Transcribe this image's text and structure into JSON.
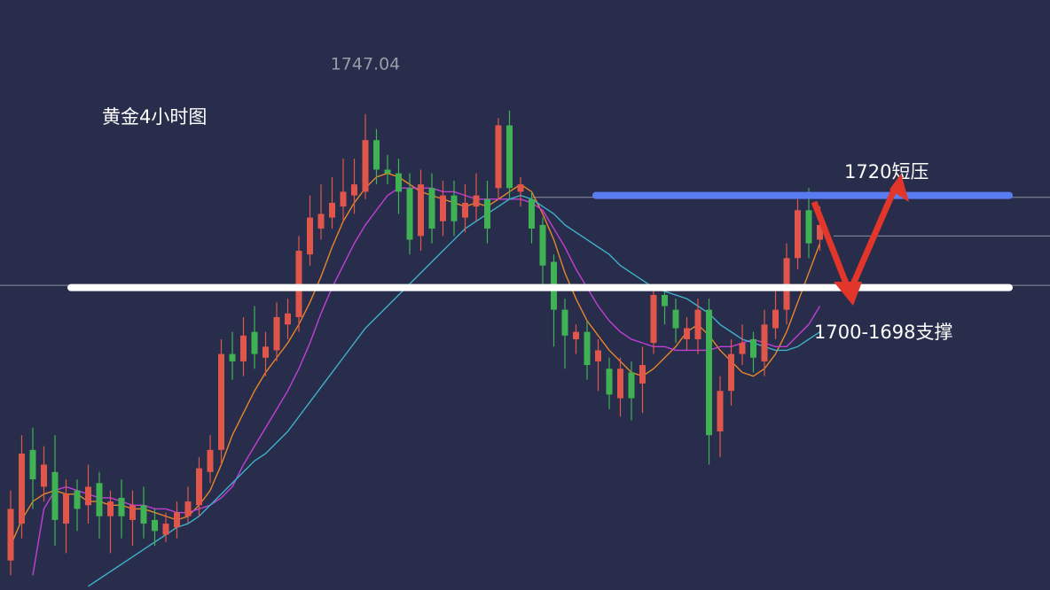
{
  "chart_data": {
    "type": "candlestick",
    "title": "黄金4小时图",
    "resistance_label": "1720短压",
    "support_label": "1700-1698支撑",
    "ylim": [
      1618,
      1778
    ],
    "up_color": "#e0564a",
    "down_color": "#3fb253",
    "open": [
      1626,
      1636,
      1656,
      1646,
      1650,
      1636,
      1645,
      1641,
      1647,
      1638,
      1643,
      1637,
      1641,
      1637,
      1633,
      1635,
      1638,
      1641,
      1650,
      1656,
      1682,
      1680,
      1688,
      1681,
      1683,
      1690,
      1692,
      1709,
      1716,
      1719,
      1722,
      1725,
      1726,
      1740,
      1732,
      1731,
      1727,
      1714,
      1727,
      1718,
      1725,
      1719,
      1722,
      1724,
      1727,
      1744,
      1726,
      1724,
      1717,
      1707,
      1694,
      1686,
      1688,
      1680,
      1678,
      1670,
      1677,
      1674,
      1685,
      1698,
      1694,
      1686,
      1686,
      1694,
      1661,
      1672,
      1682,
      1686,
      1680,
      1689,
      1694,
      1708,
      1721,
      1713
    ],
    "high": [
      1645,
      1660,
      1662,
      1657,
      1660,
      1648,
      1648,
      1652,
      1650,
      1645,
      1648,
      1645,
      1646,
      1640,
      1639,
      1642,
      1646,
      1654,
      1660,
      1686,
      1688,
      1692,
      1695,
      1688,
      1696,
      1697,
      1714,
      1725,
      1728,
      1730,
      1735,
      1735,
      1747.04,
      1743,
      1736,
      1735,
      1731,
      1732,
      1731,
      1729,
      1729,
      1728,
      1731,
      1729,
      1746,
      1748,
      1730,
      1726,
      1719,
      1709,
      1697,
      1690,
      1691,
      1686,
      1681,
      1681,
      1680,
      1684,
      1700,
      1700,
      1697,
      1692,
      1697,
      1697,
      1676,
      1686,
      1690,
      1688,
      1694,
      1699,
      1712,
      1724,
      1727,
      1722
    ],
    "low": [
      1622,
      1632,
      1640,
      1642,
      1630,
      1628,
      1634,
      1636,
      1632,
      1628,
      1632,
      1630,
      1632,
      1630,
      1631,
      1632,
      1636,
      1638,
      1647,
      1652,
      1675,
      1676,
      1678,
      1676,
      1680,
      1686,
      1688,
      1706,
      1713,
      1716,
      1718,
      1720,
      1724,
      1728,
      1728,
      1720,
      1709,
      1710,
      1712,
      1714,
      1714,
      1715,
      1718,
      1712,
      1724,
      1724,
      1722,
      1712,
      1700,
      1684,
      1678,
      1682,
      1675,
      1672,
      1667,
      1665,
      1664,
      1666,
      1682,
      1690,
      1685,
      1683,
      1682,
      1652,
      1654,
      1668,
      1679,
      1677,
      1676,
      1686,
      1690,
      1705,
      1708,
      1710
    ],
    "close": [
      1640,
      1655,
      1648,
      1652,
      1637,
      1644,
      1640,
      1646,
      1638,
      1642,
      1638,
      1641,
      1636,
      1634,
      1636,
      1639,
      1642,
      1651,
      1656,
      1682,
      1680,
      1687,
      1682,
      1684,
      1692,
      1693,
      1710,
      1719,
      1720,
      1723,
      1726,
      1728,
      1740,
      1732,
      1731,
      1726,
      1713,
      1728,
      1716,
      1725,
      1718,
      1723,
      1725,
      1716,
      1744,
      1727,
      1728,
      1716,
      1706,
      1694,
      1687,
      1688,
      1679,
      1683,
      1671,
      1678,
      1670,
      1679,
      1698,
      1695,
      1689,
      1689,
      1694,
      1660,
      1672,
      1682,
      1685,
      1681,
      1690,
      1694,
      1708,
      1721,
      1712,
      1717
    ],
    "ma_lines": [
      {
        "color": "#e8862a",
        "values": [
          1630,
          1637,
          1642,
          1644,
          1645,
          1644,
          1644,
          1642,
          1642,
          1641,
          1641,
          1640,
          1640,
          1639,
          1638,
          1637,
          1638,
          1641,
          1645,
          1652,
          1660,
          1666,
          1672,
          1677,
          1681,
          1685,
          1690,
          1696,
          1703,
          1711,
          1718,
          1723,
          1727,
          1730,
          1731,
          1730,
          1728,
          1726,
          1725,
          1724,
          1723,
          1722,
          1723,
          1722,
          1724,
          1726,
          1728,
          1726,
          1720,
          1713,
          1704,
          1697,
          1691,
          1687,
          1683,
          1680,
          1677,
          1676,
          1678,
          1681,
          1684,
          1688,
          1690,
          1687,
          1683,
          1680,
          1677,
          1676,
          1678,
          1682,
          1688,
          1696,
          1704,
          1712
        ]
      },
      {
        "color": "#c23fd6",
        "values": [
          null,
          null,
          1622,
          1640,
          1645,
          1646,
          1645,
          1644,
          1643,
          1643,
          1642,
          1641,
          1641,
          1640,
          1640,
          1639,
          1639,
          1640,
          1641,
          1643,
          1646,
          1652,
          1657,
          1662,
          1667,
          1672,
          1678,
          1685,
          1693,
          1700,
          1706,
          1712,
          1717,
          1721,
          1725,
          1727,
          1727,
          1727,
          1727,
          1726,
          1726,
          1725,
          1724,
          1724,
          1724,
          1724,
          1724,
          1723,
          1721,
          1716,
          1711,
          1705,
          1700,
          1695,
          1691,
          1688,
          1686,
          1685,
          1684,
          1684,
          1683,
          1683,
          1683,
          1683,
          1684,
          1684,
          1685,
          1686,
          1685,
          1684,
          1684,
          1687,
          1690,
          1695
        ]
      },
      {
        "color": "#3fb0c8",
        "values": [
          null,
          null,
          null,
          null,
          null,
          null,
          null,
          1619,
          1621,
          1623,
          1625,
          1627,
          1629,
          1631,
          1633,
          1635,
          1636,
          1638,
          1641,
          1644,
          1647,
          1650,
          1653,
          1655,
          1658,
          1661,
          1665,
          1669,
          1673,
          1677,
          1681,
          1685,
          1689,
          1692,
          1695,
          1698,
          1701,
          1704,
          1707,
          1710,
          1713,
          1716,
          1718,
          1720,
          1722,
          1724,
          1725,
          1724,
          1722,
          1720,
          1717,
          1715,
          1713,
          1711,
          1709,
          1706,
          1704,
          1702,
          1700,
          1699,
          1698,
          1697,
          1695,
          1693,
          1690,
          1688,
          1686,
          1685,
          1684,
          1683,
          1683,
          1684,
          1686,
          1688
        ]
      }
    ],
    "guides": [
      1724.5,
      1714,
      1700.6
    ],
    "levels": [
      {
        "value": 1725,
        "color": "#5a7cf2"
      },
      {
        "value": 1700,
        "color": "#ffffff"
      }
    ]
  }
}
